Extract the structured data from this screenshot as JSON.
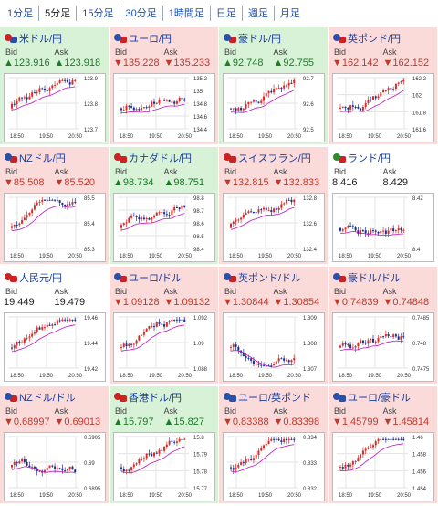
{
  "tabs": [
    "1分足",
    "5分足",
    "15分足",
    "30分足",
    "1時間足",
    "日足",
    "週足",
    "月足"
  ],
  "active_tab": "5分足",
  "labels": {
    "bid": "Bid",
    "ask": "Ask"
  },
  "xticks": [
    "18:50",
    "19:50",
    "20:50"
  ],
  "colors": {
    "down_bg": "#fbdada",
    "up_bg": "#d7f2d7",
    "flat_bg": "#ffffff",
    "down": "#c0392b",
    "up": "#1e7b28",
    "candle_up": "#d62c2c",
    "candle_down": "#1c2f8f",
    "ma": "#c014c0"
  },
  "cards": [
    {
      "pair": "米ドル/円",
      "dir": "up",
      "bid": "▲123.916",
      "ask": "▲123.918",
      "flag": [
        "#cc2222",
        "#2a4fa8"
      ],
      "yticks": [
        "123.9",
        "123.8",
        "123.7"
      ],
      "trend": "up"
    },
    {
      "pair": "ユーロ/円",
      "dir": "down",
      "bid": "▼135.228",
      "ask": "▼135.233",
      "flag": [
        "#2a4fa8",
        "#cc2222"
      ],
      "yticks": [
        "135.2",
        "135",
        "134.8",
        "134.6",
        "134.4"
      ],
      "trend": "up"
    },
    {
      "pair": "豪ドル/円",
      "dir": "up",
      "bid": "▲92.748",
      "ask": "▲92.755",
      "flag": [
        "#2a4fa8",
        "#cc2222"
      ],
      "yticks": [
        "92.7",
        "92.6",
        "92.5"
      ],
      "trend": "up"
    },
    {
      "pair": "英ポンド/円",
      "dir": "down",
      "bid": "▼162.142",
      "ask": "▼162.152",
      "flag": [
        "#2a4fa8",
        "#cc2222"
      ],
      "yticks": [
        "162.2",
        "162",
        "161.8",
        "161.6"
      ],
      "trend": "up"
    },
    {
      "pair": "NZドル/円",
      "dir": "down",
      "bid": "▼85.508",
      "ask": "▼85.520",
      "flag": [
        "#2a4fa8",
        "#cc2222"
      ],
      "yticks": [
        "85.5",
        "85.4",
        "85.3"
      ],
      "trend": "up"
    },
    {
      "pair": "カナダドル/円",
      "dir": "up",
      "bid": "▲98.734",
      "ask": "▲98.751",
      "flag": [
        "#cc2222",
        "#cc2222"
      ],
      "yticks": [
        "98.8",
        "98.7",
        "98.6",
        "98.5",
        "98.4"
      ],
      "trend": "up"
    },
    {
      "pair": "スイスフラン/円",
      "dir": "down",
      "bid": "▼132.815",
      "ask": "▼132.833",
      "flag": [
        "#cc2222",
        "#cc2222"
      ],
      "yticks": [
        "132.8",
        "132.6",
        "132.4"
      ],
      "trend": "up"
    },
    {
      "pair": "ランド/円",
      "dir": "flat",
      "bid": "8.416",
      "ask": "8.429",
      "flag": [
        "#2e8b2e",
        "#cc2222"
      ],
      "yticks": [
        "8.42",
        "8.4"
      ],
      "trend": "flat"
    },
    {
      "pair": "人民元/円",
      "dir": "flat",
      "bid": "19.449",
      "ask": "19.479",
      "flag": [
        "#cc2222",
        "#cc2222"
      ],
      "yticks": [
        "19.46",
        "19.44",
        "19.42"
      ],
      "trend": "up"
    },
    {
      "pair": "ユーロ/ドル",
      "dir": "down",
      "bid": "▼1.09128",
      "ask": "▼1.09132",
      "flag": [
        "#2a4fa8",
        "#cc2222"
      ],
      "yticks": [
        "1.092",
        "1.09",
        "1.088"
      ],
      "trend": "up"
    },
    {
      "pair": "英ポンド/ドル",
      "dir": "down",
      "bid": "▼1.30844",
      "ask": "▼1.30854",
      "flag": [
        "#2a4fa8",
        "#cc2222"
      ],
      "yticks": [
        "1.309",
        "1.308",
        "1.307"
      ],
      "trend": "flat"
    },
    {
      "pair": "豪ドル/ドル",
      "dir": "down",
      "bid": "▼0.74839",
      "ask": "▼0.74848",
      "flag": [
        "#2a4fa8",
        "#cc2222"
      ],
      "yticks": [
        "0.7485",
        "0.748",
        "0.7475"
      ],
      "trend": "flat"
    },
    {
      "pair": "NZドル/ドル",
      "dir": "down",
      "bid": "▼0.68997",
      "ask": "▼0.69013",
      "flag": [
        "#2a4fa8",
        "#cc2222"
      ],
      "yticks": [
        "0.6905",
        "0.69",
        "0.6895"
      ],
      "trend": "down"
    },
    {
      "pair": "香港ドル/円",
      "dir": "up",
      "bid": "▲15.797",
      "ask": "▲15.827",
      "flag": [
        "#cc2222",
        "#cc2222"
      ],
      "yticks": [
        "15.8",
        "15.79",
        "15.78",
        "15.77"
      ],
      "trend": "up"
    },
    {
      "pair": "ユーロ/英ポンド",
      "dir": "down",
      "bid": "▼0.83388",
      "ask": "▼0.83398",
      "flag": [
        "#2a4fa8",
        "#2a4fa8"
      ],
      "yticks": [
        "0.834",
        "0.833",
        "0.832"
      ],
      "trend": "up"
    },
    {
      "pair": "ユーロ/豪ドル",
      "dir": "down",
      "bid": "▼1.45799",
      "ask": "▼1.45814",
      "flag": [
        "#2a4fa8",
        "#2a4fa8"
      ],
      "yticks": [
        "1.46",
        "1.458",
        "1.456",
        "1.454"
      ],
      "trend": "up"
    }
  ]
}
